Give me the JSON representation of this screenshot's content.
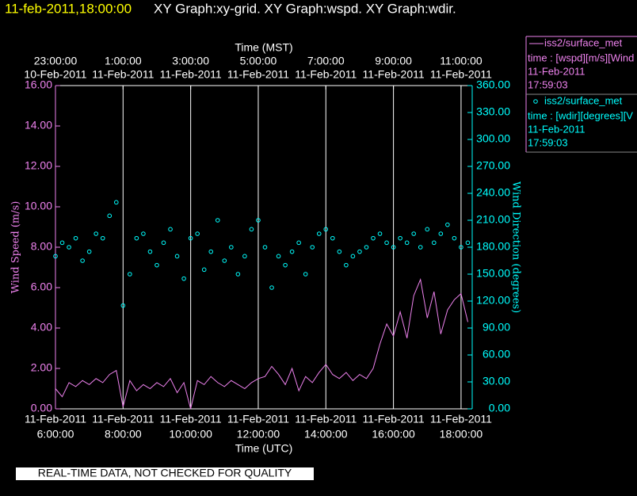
{
  "chart_data": {
    "type": "line",
    "title_date": "11-feb-2011,18:00:00",
    "title": "XY Graph:xy-grid.  XY Graph:wspd.  XY Graph:wdir.",
    "x_label_top": "Time (MST)",
    "x_label": "Time (UTC)",
    "y_label": "Wind Speed (m/s)",
    "y2_label": "Wind Direction (degrees)",
    "footer": "REAL-TIME DATA, NOT CHECKED FOR QUALITY",
    "grid": true,
    "xlim": [
      6,
      18.33
    ],
    "ylim": [
      0,
      16
    ],
    "y2lim": [
      0,
      360
    ],
    "xticks": [
      {
        "value": 6,
        "label": "6:00:00",
        "date": "11-Feb-2011"
      },
      {
        "value": 8,
        "label": "8:00:00",
        "date": "11-Feb-2011"
      },
      {
        "value": 10,
        "label": "10:00:00",
        "date": "11-Feb-2011"
      },
      {
        "value": 12,
        "label": "12:00:00",
        "date": "11-Feb-2011"
      },
      {
        "value": 14,
        "label": "14:00:00",
        "date": "11-Feb-2011"
      },
      {
        "value": 16,
        "label": "16:00:00",
        "date": "11-Feb-2011"
      },
      {
        "value": 18,
        "label": "18:00:00",
        "date": "11-Feb-2011"
      }
    ],
    "x2ticks": [
      {
        "value": 6,
        "label": "23:00:00",
        "date": "10-Feb-2011"
      },
      {
        "value": 8,
        "label": "1:00:00",
        "date": "11-Feb-2011"
      },
      {
        "value": 10,
        "label": "3:00:00",
        "date": "11-Feb-2011"
      },
      {
        "value": 12,
        "label": "5:00:00",
        "date": "11-Feb-2011"
      },
      {
        "value": 14,
        "label": "7:00:00",
        "date": "11-Feb-2011"
      },
      {
        "value": 16,
        "label": "9:00:00",
        "date": "11-Feb-2011"
      },
      {
        "value": 18,
        "label": "11:00:00",
        "date": "11-Feb-2011"
      }
    ],
    "yticks": [
      {
        "value": 0,
        "label": "0.00"
      },
      {
        "value": 2,
        "label": "2.00"
      },
      {
        "value": 4,
        "label": "4.00"
      },
      {
        "value": 6,
        "label": "6.00"
      },
      {
        "value": 8,
        "label": "8.00"
      },
      {
        "value": 10,
        "label": "10.00"
      },
      {
        "value": 12,
        "label": "12.00"
      },
      {
        "value": 14,
        "label": "14.00"
      },
      {
        "value": 16,
        "label": "16.00"
      }
    ],
    "y2ticks": [
      {
        "value": 0,
        "label": "0.00"
      },
      {
        "value": 30,
        "label": "30.00"
      },
      {
        "value": 60,
        "label": "60.00"
      },
      {
        "value": 90,
        "label": "90.00"
      },
      {
        "value": 120,
        "label": "120.00"
      },
      {
        "value": 150,
        "label": "150.00"
      },
      {
        "value": 180,
        "label": "180.00"
      },
      {
        "value": 210,
        "label": "210.00"
      },
      {
        "value": 240,
        "label": "240.00"
      },
      {
        "value": 270,
        "label": "270.00"
      },
      {
        "value": 300,
        "label": "300.00"
      },
      {
        "value": 330,
        "label": "330.00"
      },
      {
        "value": 360,
        "label": "360.00"
      }
    ],
    "x": [
      6.0,
      6.2,
      6.4,
      6.6,
      6.8,
      7.0,
      7.2,
      7.4,
      7.6,
      7.8,
      8.0,
      8.2,
      8.4,
      8.6,
      8.8,
      9.0,
      9.2,
      9.4,
      9.6,
      9.8,
      10.0,
      10.2,
      10.4,
      10.6,
      10.8,
      11.0,
      11.2,
      11.4,
      11.6,
      11.8,
      12.0,
      12.2,
      12.4,
      12.6,
      12.8,
      13.0,
      13.2,
      13.4,
      13.6,
      13.8,
      14.0,
      14.2,
      14.4,
      14.6,
      14.8,
      15.0,
      15.2,
      15.4,
      15.6,
      15.8,
      16.0,
      16.2,
      16.4,
      16.6,
      16.8,
      17.0,
      17.2,
      17.4,
      17.6,
      17.8,
      18.0,
      18.2
    ],
    "series": [
      {
        "name": "iss2/surface_met",
        "legend_text": [
          "time : [wspd][m/s][Wind",
          "11-Feb-2011",
          "17:59:03"
        ],
        "color": "#ee82ee",
        "marker": "line",
        "axis": "y",
        "values": [
          1.0,
          0.6,
          1.3,
          1.1,
          1.4,
          1.2,
          1.5,
          1.3,
          1.7,
          1.9,
          0.1,
          1.4,
          0.9,
          1.2,
          1.0,
          1.3,
          1.1,
          1.5,
          0.8,
          1.3,
          0.0,
          1.4,
          1.2,
          1.6,
          1.3,
          1.1,
          1.4,
          1.2,
          1.0,
          1.3,
          1.5,
          1.6,
          2.1,
          1.7,
          1.2,
          2.0,
          0.9,
          1.6,
          1.3,
          1.8,
          2.2,
          1.7,
          1.5,
          1.8,
          1.4,
          1.7,
          1.5,
          2.0,
          3.2,
          4.2,
          3.6,
          4.8,
          3.5,
          5.6,
          6.4,
          4.5,
          5.8,
          3.7,
          4.9,
          5.4,
          5.7,
          4.3
        ]
      },
      {
        "name": "iss2/surface_met",
        "legend_text": [
          "time : [wdir][degrees][V",
          "11-Feb-2011",
          "17:59:03"
        ],
        "color": "#00ffff",
        "marker": "circle",
        "axis": "y2",
        "values": [
          170,
          185,
          180,
          190,
          165,
          175,
          195,
          190,
          215,
          230,
          115,
          150,
          190,
          195,
          175,
          160,
          185,
          200,
          170,
          145,
          190,
          195,
          155,
          175,
          210,
          165,
          180,
          150,
          170,
          200,
          210,
          180,
          135,
          170,
          160,
          175,
          185,
          150,
          180,
          195,
          200,
          190,
          175,
          160,
          170,
          175,
          180,
          190,
          195,
          185,
          180,
          190,
          185,
          195,
          180,
          200,
          185,
          195,
          205,
          190,
          180,
          185
        ]
      }
    ]
  }
}
